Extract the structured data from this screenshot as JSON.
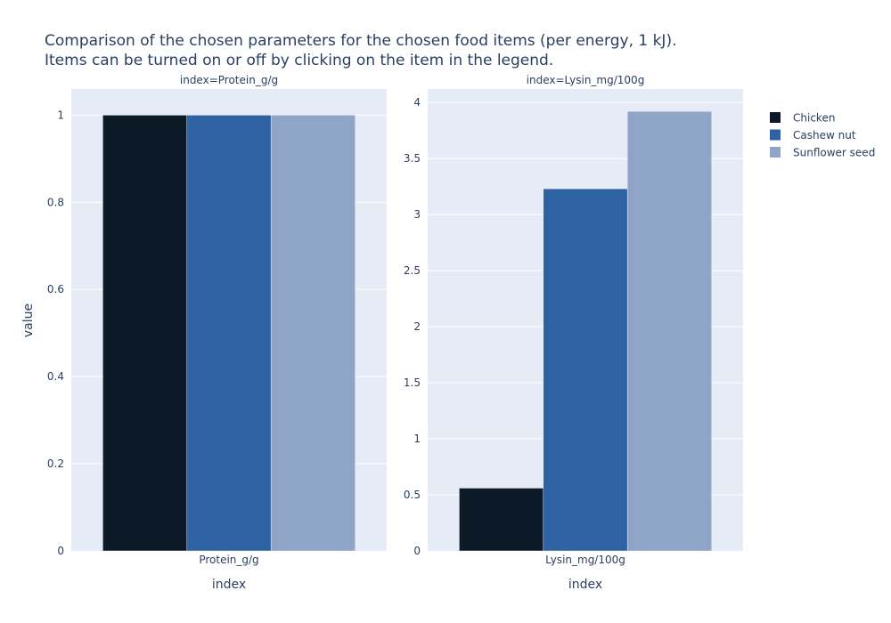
{
  "chart_data": {
    "type": "bar",
    "title_lines": [
      "Comparison of the chosen parameters for the chosen food items (per energy, 1 kJ).",
      "Items can be turned on or off by clicking on the item in the legend."
    ],
    "ylabel": "value",
    "legend_position": "right",
    "series": [
      {
        "name": "Chicken",
        "color": "#0b1a26"
      },
      {
        "name": "Cashew nut",
        "color": "#2e62a2"
      },
      {
        "name": "Sunflower seed",
        "color": "#8fa5c7"
      }
    ],
    "panels": [
      {
        "subtitle": "index=Protein_g/g",
        "category": "Protein_g/g",
        "xlabel": "index",
        "ylim": [
          0,
          1.06
        ],
        "ticks": [
          0,
          0.2,
          0.4,
          0.6,
          0.8,
          1
        ],
        "tick_labels": [
          "0",
          "0.2",
          "0.4",
          "0.6",
          "0.8",
          "1"
        ],
        "values": [
          1,
          1,
          1
        ]
      },
      {
        "subtitle": "index=Lysin_mg/100g",
        "category": "Lysin_mg/100g",
        "xlabel": "index",
        "ylim": [
          0,
          4.12
        ],
        "ticks": [
          0,
          0.5,
          1,
          1.5,
          2,
          2.5,
          3,
          3.5,
          4
        ],
        "tick_labels": [
          "0",
          "0.5",
          "1",
          "1.5",
          "2",
          "2.5",
          "3",
          "3.5",
          "4"
        ],
        "values": [
          0.56,
          3.23,
          3.92
        ]
      }
    ]
  }
}
